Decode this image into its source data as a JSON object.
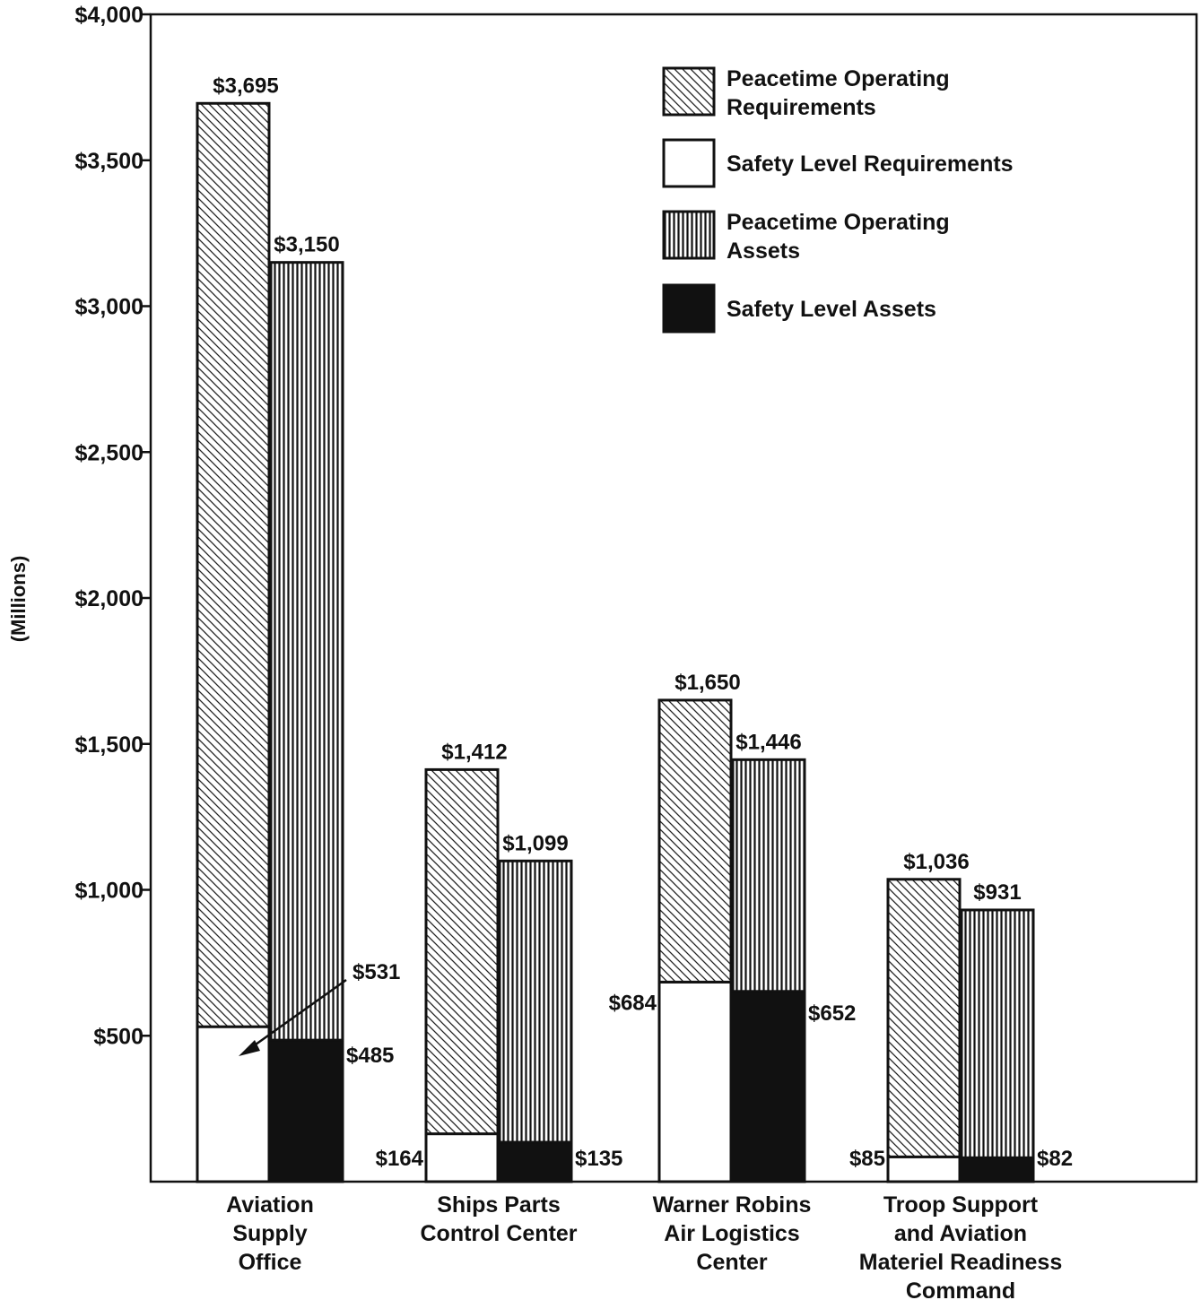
{
  "chart_data": {
    "type": "bar",
    "ylabel": "(Millions)",
    "ylim": [
      0,
      4000
    ],
    "yticks": [
      "$500",
      "$1,000",
      "$1,500",
      "$2,000",
      "$2,500",
      "$3,000",
      "$3,500",
      "$4,000"
    ],
    "ytick_values": [
      500,
      1000,
      1500,
      2000,
      2500,
      3000,
      3500,
      4000
    ],
    "categories": [
      [
        "Aviation",
        "Supply",
        "Office"
      ],
      [
        "Ships Parts",
        "Control Center"
      ],
      [
        "Warner Robins",
        "Air Logistics",
        "Center"
      ],
      [
        "Troop Support",
        "and Aviation",
        "Materiel Readiness",
        "Command"
      ]
    ],
    "legend": [
      {
        "lines": [
          "Peacetime Operating",
          "Requirements"
        ],
        "pattern": "diagonal"
      },
      {
        "lines": [
          "Safety Level Requirements"
        ],
        "pattern": "white"
      },
      {
        "lines": [
          "Peacetime Operating",
          "Assets"
        ],
        "pattern": "vertical"
      },
      {
        "lines": [
          "Safety Level Assets"
        ],
        "pattern": "black"
      }
    ],
    "groups": [
      {
        "requirements_total": 3695,
        "requirements_total_label": "$3,695",
        "safety_requirements": 531,
        "safety_requirements_label": "$531",
        "assets_total": 3150,
        "assets_total_label": "$3,150",
        "safety_assets": 485,
        "safety_assets_label": "$485"
      },
      {
        "requirements_total": 1412,
        "requirements_total_label": "$1,412",
        "safety_requirements": 164,
        "safety_requirements_label": "$164",
        "assets_total": 1099,
        "assets_total_label": "$1,099",
        "safety_assets": 135,
        "safety_assets_label": "$135"
      },
      {
        "requirements_total": 1650,
        "requirements_total_label": "$1,650",
        "safety_requirements": 684,
        "safety_requirements_label": "$684",
        "assets_total": 1446,
        "assets_total_label": "$1,446",
        "safety_assets": 652,
        "safety_assets_label": "$652"
      },
      {
        "requirements_total": 1036,
        "requirements_total_label": "$1,036",
        "safety_requirements": 85,
        "safety_requirements_label": "$85",
        "assets_total": 931,
        "assets_total_label": "$931",
        "safety_assets": 82,
        "safety_assets_label": "$82"
      }
    ],
    "grid": false,
    "legend_position": "top-right"
  }
}
